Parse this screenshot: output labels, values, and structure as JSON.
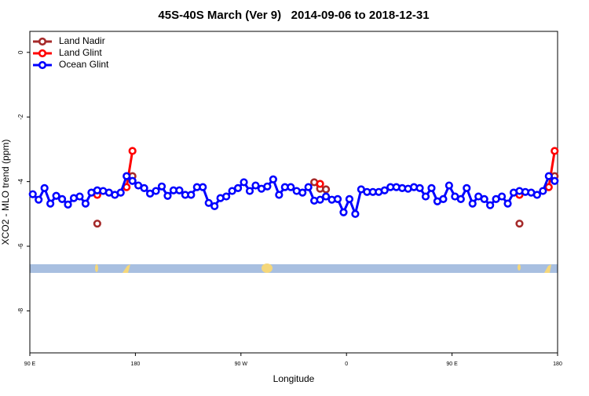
{
  "chart_data": {
    "type": "line",
    "title": "45S-40S March (Ver 9)   2014-09-06 to 2018-12-31",
    "xlabel": "Longitude",
    "ylabel": "XCO2 - MLO trend (ppm)",
    "xlim": [
      90,
      540
    ],
    "ylim": [
      -9.3,
      0.65
    ],
    "xticks": [
      {
        "value": 90,
        "label": "90 E"
      },
      180,
      {
        "value": 270,
        "label": "90 W"
      },
      {
        "value": 360,
        "label": "0"
      },
      {
        "value": 450,
        "label": "90 E"
      },
      {
        "value": 540,
        "label": "180"
      }
    ],
    "yticks": [
      0,
      -2,
      -4,
      -6,
      -8
    ],
    "legend": "top-left",
    "series": [
      {
        "name": "Land Nadir",
        "color": "#a52a2a",
        "x": [
          147.5,
          152.5,
          177.5,
          182.5,
          332.5,
          337.5,
          342.5,
          347.5,
          507.5,
          512.5,
          537.5
        ],
        "values": [
          -5.3,
          null,
          -3.83,
          null,
          -4.02,
          -4.22,
          -4.24,
          null,
          -5.3,
          null,
          -3.83
        ]
      },
      {
        "name": "Land Glint",
        "color": "#ff0000",
        "x": [
          147.5,
          152.5,
          172.5,
          177.5,
          182.5,
          337.5,
          342.5,
          507.5,
          512.5,
          532.5,
          537.5
        ],
        "values": [
          -4.41,
          null,
          -4.17,
          -3.05,
          null,
          -4.07,
          null,
          -4.41,
          null,
          -4.17,
          -3.05
        ]
      },
      {
        "name": "Ocean Glint",
        "color": "#0000ff",
        "x": [
          92.5,
          97.5,
          102.5,
          107.5,
          112.5,
          117.5,
          122.5,
          127.5,
          132.5,
          137.5,
          142.5,
          147.5,
          152.5,
          157.5,
          162.5,
          167.5,
          172.5,
          177.5,
          182.5,
          187.5,
          192.5,
          197.5,
          202.5,
          207.5,
          212.5,
          217.5,
          222.5,
          227.5,
          232.5,
          237.5,
          242.5,
          247.5,
          252.5,
          257.5,
          262.5,
          267.5,
          272.5,
          277.5,
          282.5,
          287.5,
          292.5,
          297.5,
          302.5,
          307.5,
          312.5,
          317.5,
          322.5,
          327.5,
          332.5,
          337.5,
          342.5,
          347.5,
          352.5,
          357.5,
          362.5,
          367.5,
          372.5,
          377.5,
          382.5,
          387.5,
          392.5,
          397.5,
          402.5,
          407.5,
          412.5,
          417.5,
          422.5,
          427.5,
          432.5,
          437.5,
          442.5,
          447.5,
          452.5,
          457.5,
          462.5,
          467.5,
          472.5,
          477.5,
          482.5,
          487.5,
          492.5,
          497.5,
          502.5,
          507.5,
          512.5,
          517.5,
          522.5,
          527.5,
          532.5,
          537.5
        ],
        "values": [
          -4.39,
          -4.56,
          -4.2,
          -4.68,
          -4.44,
          -4.54,
          -4.71,
          -4.51,
          -4.46,
          -4.68,
          -4.34,
          -4.27,
          -4.29,
          -4.34,
          -4.41,
          -4.34,
          -3.83,
          -3.98,
          -4.12,
          -4.2,
          -4.37,
          -4.29,
          -4.15,
          -4.44,
          -4.27,
          -4.27,
          -4.41,
          -4.41,
          -4.17,
          -4.17,
          -4.66,
          -4.76,
          -4.51,
          -4.46,
          -4.29,
          -4.2,
          -4.02,
          -4.29,
          -4.12,
          -4.22,
          -4.15,
          -3.93,
          -4.41,
          -4.17,
          -4.17,
          -4.29,
          -4.34,
          -4.17,
          -4.59,
          -4.56,
          -4.46,
          -4.56,
          -4.54,
          -4.95,
          -4.54,
          -5.0,
          -4.24,
          -4.32,
          -4.32,
          -4.32,
          -4.27,
          -4.17,
          -4.17,
          -4.2,
          -4.22,
          -4.17,
          -4.2,
          -4.46,
          -4.2,
          -4.61,
          -4.54,
          -4.12,
          -4.46,
          -4.54,
          -4.2,
          -4.68,
          -4.46,
          -4.54,
          -4.73,
          -4.54,
          -4.46,
          -4.68,
          -4.34,
          -4.29,
          -4.32,
          -4.34,
          -4.41,
          -4.29,
          -3.83,
          -3.98
        ]
      }
    ]
  }
}
